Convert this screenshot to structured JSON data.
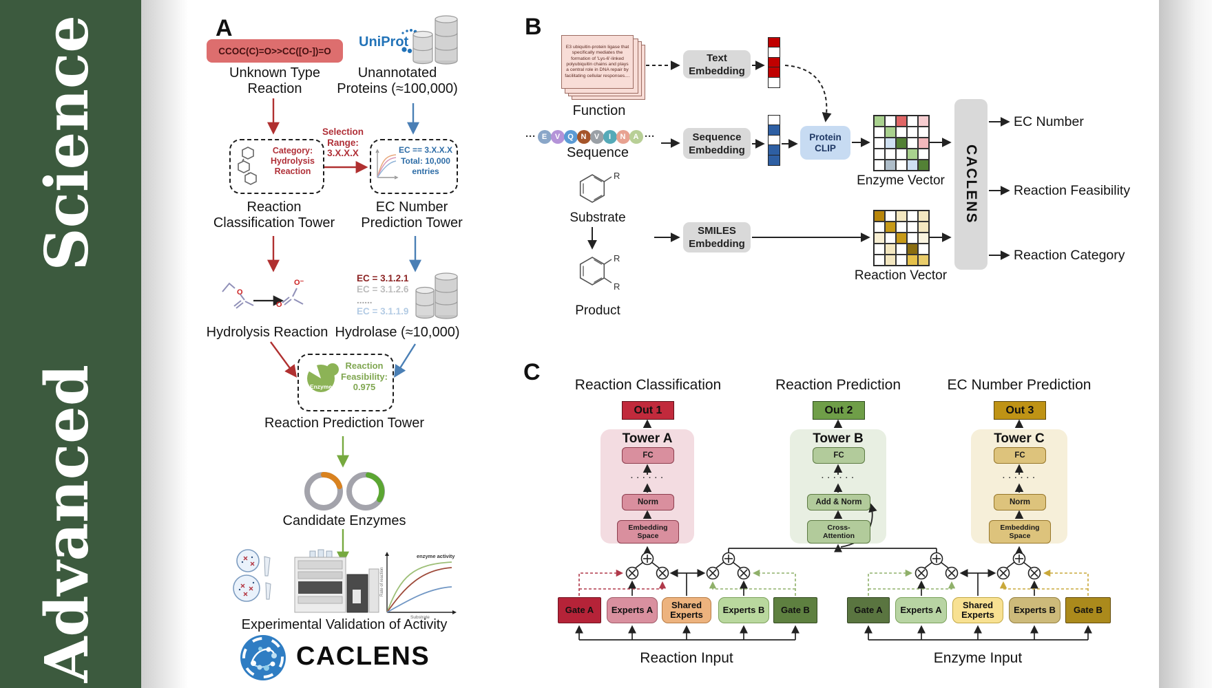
{
  "banner": {
    "line1": "Advanced",
    "line2": "Science",
    "bg_color": "#3c5a3e"
  },
  "colors": {
    "red_arrow": "#b03030",
    "blue_arrow": "#4a7fb5",
    "green_arrow": "#76a93f",
    "out1": "#c12a3c",
    "out2": "#6f9e48",
    "out3": "#bf9315"
  },
  "panelA": {
    "label": "A",
    "smiles": "CCOC(C)=O>>CC([O-])=O",
    "unknown_type": "Unknown Type\nReaction",
    "uniprot": "UniProt",
    "unannotated": "Unannotated\nProteins (≈100,000)",
    "selection": "Selection\nRange:\n3.X.X.X",
    "category": "Category:\nHydrolysis\nReaction",
    "ec_box": "EC == 3.X.X.X\nTotal: 10,000\nentries",
    "rc_tower": "Reaction\nClassification Tower",
    "ec_tower": "EC Number\nPrediction Tower",
    "hydrolysis_label": "Hydrolysis Reaction",
    "ec_list": [
      {
        "text": "EC = 3.1.2.1",
        "color": "#8b2222"
      },
      {
        "text": "EC = 3.1.2.6",
        "color": "#bcbcbc"
      },
      {
        "text": "......",
        "color": "#a6a6a6"
      },
      {
        "text": "EC = 3.1.1.9",
        "color": "#b3cbe4"
      }
    ],
    "hydrolase_label": "Hydrolase (≈10,000)",
    "enzyme_label": "Enzyme",
    "feasibility": "Reaction\nFeasibility:\n0.975",
    "rp_tower": "Reaction Prediction Tower",
    "candidate": "Candidate Enzymes",
    "graph": {
      "title": "enzyme activity",
      "ylabel": "Rate of reaction",
      "xlabel": "Substrate"
    },
    "validation": "Experimental Validation of Activity",
    "logo_text": "CACLENS",
    "atoms": {
      "o": "O",
      "o_minus": "O⁻"
    }
  },
  "panelB": {
    "label": "B",
    "function_card_text": "E3 ubiquitin-protein ligase that specifically mediates the formation of 'Lys-6'-linked polyubiquitin chains and plays a central role in DNA repair by facilitating cellular responses....",
    "function_label": "Function",
    "sequence_label": "Sequence",
    "ellipsis": "···",
    "sequence_residues": [
      {
        "letter": "E",
        "color": "#8aa6c8"
      },
      {
        "letter": "V",
        "color": "#b493d8"
      },
      {
        "letter": "Q",
        "color": "#5b9bd5"
      },
      {
        "letter": "N",
        "color": "#a5552a"
      },
      {
        "letter": "V",
        "color": "#9aa0a6"
      },
      {
        "letter": "I",
        "color": "#55aab8"
      },
      {
        "letter": "N",
        "color": "#e8a291"
      },
      {
        "letter": "A",
        "color": "#b8cf96"
      }
    ],
    "substrate_label": "Substrate",
    "product_label": "Product",
    "r_label": "R",
    "text_embedding": "Text\nEmbedding",
    "sequence_embedding": "Sequence\nEmbedding",
    "smiles_embedding": "SMILES\nEmbedding",
    "protein_clip": "Protein\nCLIP",
    "text_vector": [
      "#c00000",
      "#ffffff",
      "#c00000",
      "#c00000",
      "#ffffff"
    ],
    "seq_vector": [
      "#ffffff",
      "#2e5fa3",
      "#ffffff",
      "#2e5fa3",
      "#2e5fa3"
    ],
    "enzyme_matrix": [
      [
        "#a9d18e",
        "#ffffff",
        "#e06666",
        "#ffffff",
        "#f6cdd0"
      ],
      [
        "#ffffff",
        "#a9d18e",
        "#ffffff",
        "#ffffff",
        "#ffffff"
      ],
      [
        "#ffffff",
        "#cfe0f2",
        "#538135",
        "#ffffff",
        "#f2b8bc"
      ],
      [
        "#ffffff",
        "#ffffff",
        "#ffffff",
        "#a9d18e",
        "#ffffff"
      ],
      [
        "#ffffff",
        "#aebdc9",
        "#ffffff",
        "#cfe0f2",
        "#538135"
      ]
    ],
    "reaction_matrix": [
      [
        "#b8860b",
        "#ffffff",
        "#f3e7c0",
        "#ffffff",
        "#f3e7c0"
      ],
      [
        "#ffffff",
        "#c79a18",
        "#ffffff",
        "#ffffff",
        "#f3e7c0"
      ],
      [
        "#f7eed2",
        "#ffffff",
        "#c79a18",
        "#ffffff",
        "#faf4e0"
      ],
      [
        "#ffffff",
        "#f3e7c0",
        "#ffffff",
        "#8a6d10",
        "#ffffff"
      ],
      [
        "#ffffff",
        "#f3e7c0",
        "#ffffff",
        "#e5c04a",
        "#e9cc6a"
      ]
    ],
    "enzyme_vector_label": "Enzyme Vector",
    "reaction_vector_label": "Reaction Vector",
    "caclens_bar": "CACLENS",
    "outputs": [
      "EC Number",
      "Reaction Feasibility",
      "Reaction Category"
    ]
  },
  "panelC": {
    "label": "C",
    "titles": [
      "Reaction Classification",
      "Reaction Prediction",
      "EC Number Prediction"
    ],
    "outs": [
      "Out 1",
      "Out 2",
      "Out 3"
    ],
    "towerA": {
      "title": "Tower A",
      "fc": "FC",
      "dots": "· · · · · ·",
      "norm": "Norm",
      "embed": "Embedding\nSpace"
    },
    "towerB": {
      "title": "Tower B",
      "fc": "FC",
      "dots": "· · · · · ·",
      "addnorm": "Add & Norm",
      "cross": "Cross-\nAttention"
    },
    "towerC": {
      "title": "Tower C",
      "fc": "FC",
      "dots": "· · · · · ·",
      "norm": "Norm",
      "embed": "Embedding\nSpace"
    },
    "reaction_group": {
      "gateA": "Gate A",
      "expertsA": "Experts A",
      "shared": "Shared\nExperts",
      "expertsB": "Experts B",
      "gateB": "Gate B",
      "input": "Reaction Input"
    },
    "enzyme_group": {
      "gateA": "Gate A",
      "expertsA": "Experts A",
      "shared": "Shared\nExperts",
      "expertsB": "Experts B",
      "gateB": "Gate B",
      "input": "Enzyme Input"
    }
  }
}
